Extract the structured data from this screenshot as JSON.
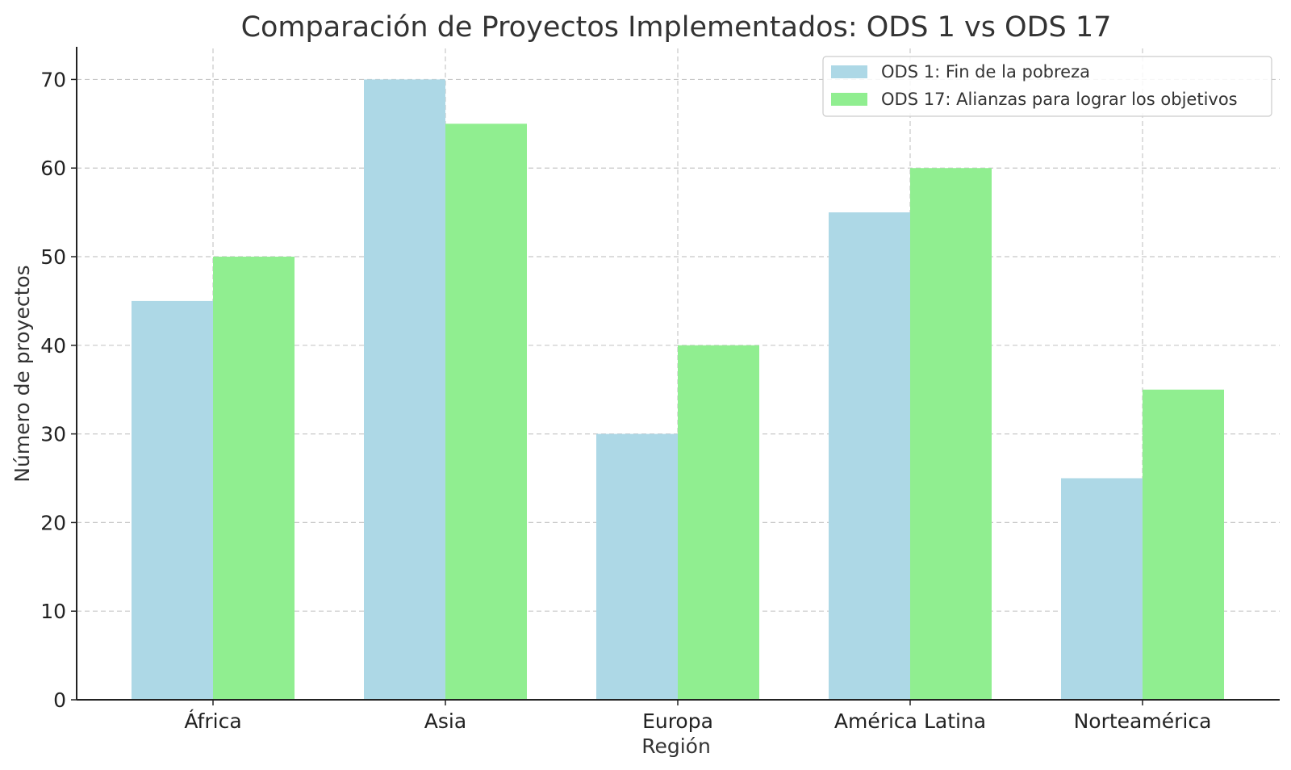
{
  "chart_data": {
    "type": "bar",
    "title": "Comparación de Proyectos Implementados: ODS 1 vs ODS 17",
    "xlabel": "Región",
    "ylabel": "Número de proyectos",
    "categories": [
      "África",
      "Asia",
      "Europa",
      "América Latina",
      "Norteamérica"
    ],
    "series": [
      {
        "name": "ODS 1: Fin de la pobreza",
        "color": "#add8e6",
        "values": [
          45,
          70,
          30,
          55,
          25
        ]
      },
      {
        "name": "ODS 17: Alianzas para lograr los objetivos",
        "color": "#90ee90",
        "values": [
          50,
          65,
          40,
          60,
          35
        ]
      }
    ],
    "ylim": [
      0,
      73.5
    ],
    "yticks": [
      0,
      10,
      20,
      30,
      40,
      50,
      60,
      70
    ],
    "grid": true,
    "legend_position": "top-right"
  }
}
